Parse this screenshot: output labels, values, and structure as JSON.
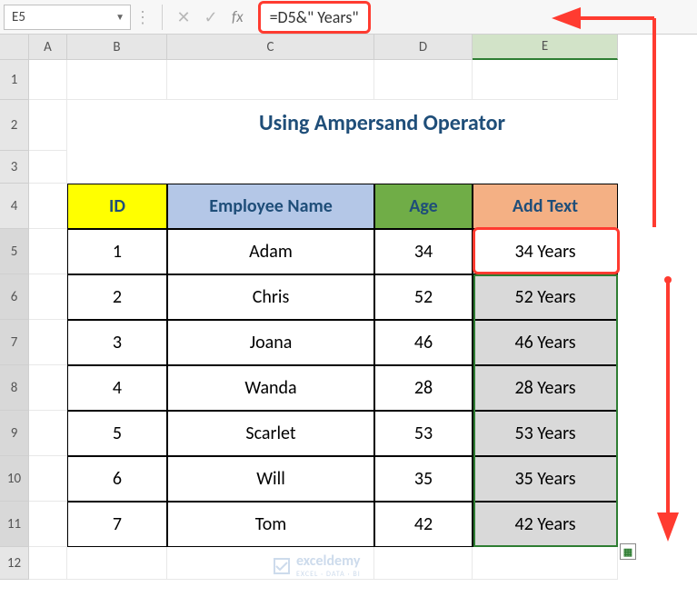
{
  "formula_bar": {
    "cell_ref": "E5",
    "formula": "=D5&\" Years\"",
    "fx_label": "fx",
    "cancel_icon": "✕",
    "enter_icon": "✓"
  },
  "columns": [
    "A",
    "B",
    "C",
    "D",
    "E"
  ],
  "selected_col": "E",
  "row_headers": [
    "1",
    "2",
    "3",
    "4",
    "5",
    "6",
    "7",
    "8",
    "9",
    "10",
    "11",
    "12"
  ],
  "selected_rows_start": 5,
  "selected_rows_end": 11,
  "title": "Using Ampersand Operator",
  "headers": {
    "id": "ID",
    "name": "Employee Name",
    "age": "Age",
    "add": "Add Text"
  },
  "rows": [
    {
      "id": "1",
      "name": "Adam",
      "age": "34",
      "add": "34 Years"
    },
    {
      "id": "2",
      "name": "Chris",
      "age": "52",
      "add": "52 Years"
    },
    {
      "id": "3",
      "name": "Joana",
      "age": "46",
      "add": "46 Years"
    },
    {
      "id": "4",
      "name": "Wanda",
      "age": "28",
      "add": "28 Years"
    },
    {
      "id": "5",
      "name": "Scarlet",
      "age": "53",
      "add": "53 Years"
    },
    {
      "id": "6",
      "name": "Will",
      "age": "35",
      "add": "35 Years"
    },
    {
      "id": "7",
      "name": "Tom",
      "age": "42",
      "add": "42 Years"
    }
  ],
  "watermark": {
    "brand": "exceldemy",
    "tag": "EXCEL · DATA · BI"
  },
  "colors": {
    "annotate": "#ff3b30",
    "selection": "#2e7d32"
  }
}
